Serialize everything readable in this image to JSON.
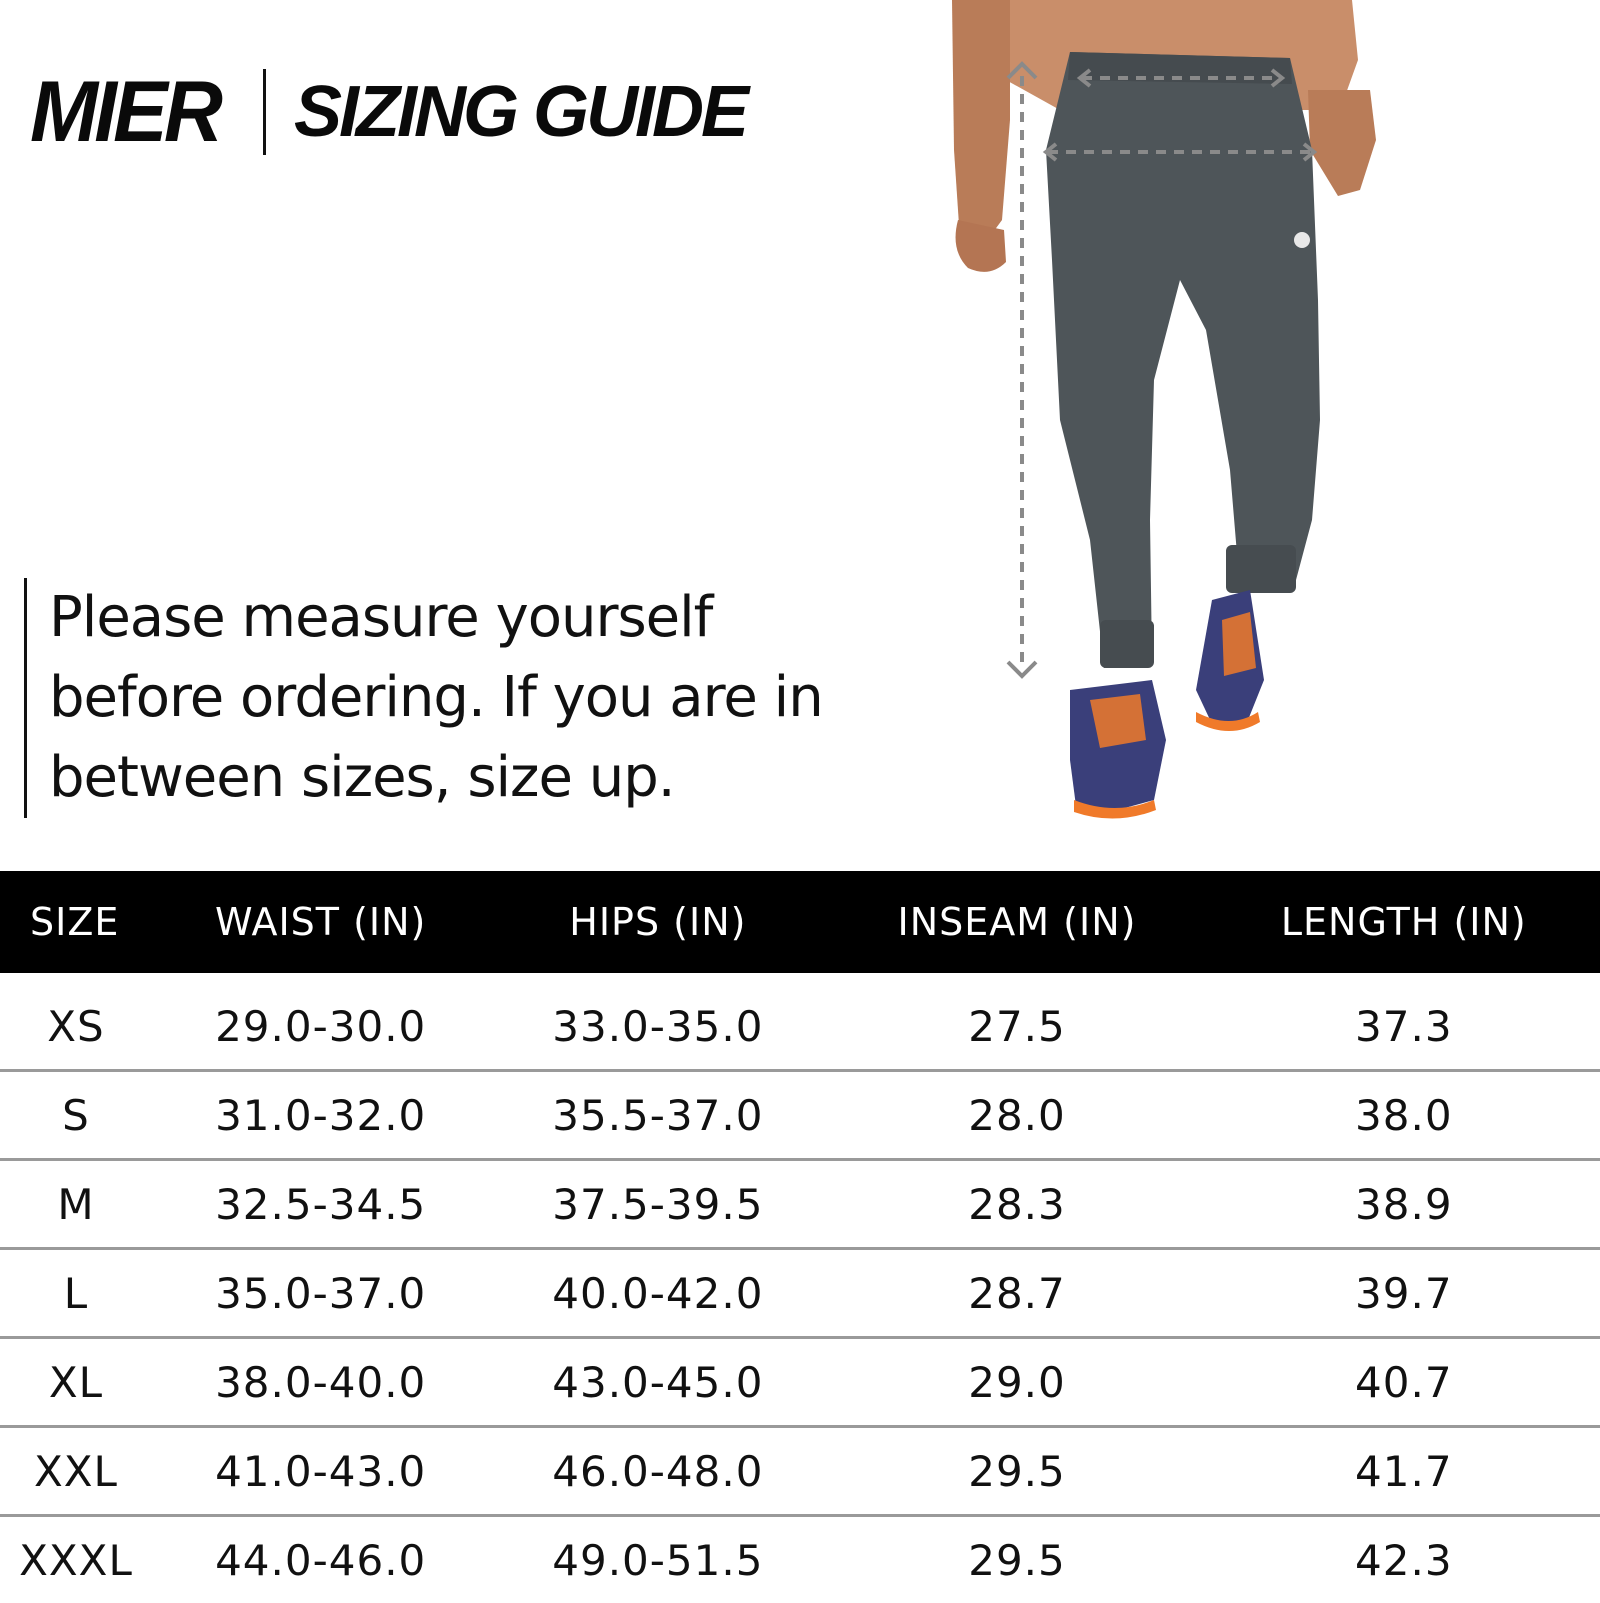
{
  "header": {
    "brand": "MIER",
    "title": "SIZING GUIDE"
  },
  "note": "Please measure yourself before ordering. If you are in between sizes, size up.",
  "colors": {
    "pants": "#4e5559",
    "header_bar": "#000000",
    "row_divider": "#9a9a9a",
    "shoe_accent": "#f07a2a",
    "shoe_body": "#3a3f7a"
  },
  "table": {
    "headers": [
      "SIZE",
      "WAIST (IN)",
      "HIPS (IN)",
      "INSEAM (IN)",
      "LENGTH (IN)"
    ],
    "rows": [
      [
        "XS",
        "29.0-30.0",
        "33.0-35.0",
        "27.5",
        "37.3"
      ],
      [
        "S",
        "31.0-32.0",
        "35.5-37.0",
        "28.0",
        "38.0"
      ],
      [
        "M",
        "32.5-34.5",
        "37.5-39.5",
        "28.3",
        "38.9"
      ],
      [
        "L",
        "35.0-37.0",
        "40.0-42.0",
        "28.7",
        "39.7"
      ],
      [
        "XL",
        "38.0-40.0",
        "43.0-45.0",
        "29.0",
        "40.7"
      ],
      [
        "XXL",
        "41.0-43.0",
        "46.0-48.0",
        "29.5",
        "41.7"
      ],
      [
        "XXXL",
        "44.0-46.0",
        "49.0-51.5",
        "29.5",
        "42.3"
      ]
    ]
  }
}
